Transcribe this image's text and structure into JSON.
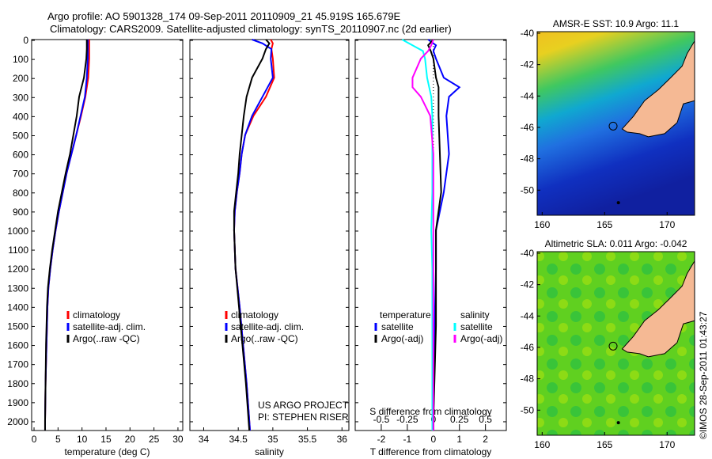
{
  "title_line1": "Argo profile: AO 5901328_174 09-Sep-2011 20110909_21 45.919S 165.679E",
  "title_line2": "Climatology: CARS2009. Satellite-adjusted climatology: synTS_20110907.nc (2d earlier)",
  "watermark": "©IMOS 28-Sep-2011 01:43:27",
  "project": {
    "line1": "US ARGO PROJECT",
    "line2": "PI: STEPHEN RISER"
  },
  "colors": {
    "climatology": "#ff0000",
    "satellite": "#0000ff",
    "argo": "#000000",
    "sal_satellite": "#00ffff",
    "sal_argo": "#ff00ff"
  },
  "chart_data": [
    {
      "type": "line",
      "title": "",
      "xlabel": "temperature (deg C)",
      "ylabel": "",
      "xlim": [
        -0.5,
        31
      ],
      "ylim": [
        2050,
        0
      ],
      "xticks": [
        "0",
        "5",
        "10",
        "15",
        "20",
        "25",
        "30"
      ],
      "yticks": [
        "0",
        "100",
        "200",
        "300",
        "400",
        "500",
        "600",
        "700",
        "800",
        "900",
        "1000",
        "1100",
        "1200",
        "1300",
        "1400",
        "1500",
        "1600",
        "1700",
        "1800",
        "1900",
        "2000"
      ],
      "legend": [
        "climatology",
        "satellite-adj. clim.",
        "Argo(..raw -QC)"
      ],
      "depth": [
        0,
        50,
        100,
        200,
        300,
        400,
        500,
        600,
        700,
        800,
        900,
        1000,
        1100,
        1200,
        1300,
        1400,
        1600,
        1800,
        2000,
        2050
      ],
      "series": [
        {
          "name": "climatology",
          "color": "#ff0000",
          "values": [
            11.5,
            11.5,
            11.5,
            11.3,
            10.7,
            9.8,
            8.8,
            7.8,
            6.8,
            6.0,
            5.2,
            4.5,
            3.9,
            3.4,
            3.0,
            2.8,
            2.6,
            2.4,
            2.3,
            2.3
          ]
        },
        {
          "name": "satellite-adj. clim.",
          "color": "#0000ff",
          "values": [
            11.2,
            11.2,
            11.2,
            11.0,
            10.6,
            9.7,
            8.8,
            7.8,
            6.8,
            6.0,
            5.2,
            4.5,
            3.9,
            3.4,
            3.0,
            2.8,
            2.6,
            2.4,
            2.3,
            2.3
          ]
        },
        {
          "name": "Argo(..raw -QC)",
          "color": "#000000",
          "values": [
            11.0,
            11.0,
            10.9,
            10.4,
            9.4,
            8.9,
            8.2,
            7.5,
            6.6,
            5.8,
            5.0,
            4.4,
            3.8,
            3.3,
            2.9,
            2.7,
            2.5,
            2.4,
            2.3,
            2.3
          ]
        }
      ]
    },
    {
      "type": "line",
      "xlabel": "salinity",
      "xlim": [
        33.8,
        36.1
      ],
      "ylim": [
        2050,
        0
      ],
      "xticks": [
        "34",
        "34.5",
        "35",
        "35.5",
        "36"
      ],
      "legend": [
        "climatology",
        "satellite-adj. clim.",
        "Argo(..raw -QC)"
      ],
      "depth": [
        0,
        20,
        50,
        100,
        200,
        300,
        400,
        500,
        600,
        700,
        800,
        900,
        1000,
        1200,
        1400,
        1600,
        1800,
        2000,
        2050
      ],
      "series": [
        {
          "name": "climatology",
          "color": "#ff0000",
          "values": [
            34.97,
            35.0,
            34.98,
            35.0,
            35.02,
            34.9,
            34.72,
            34.6,
            34.55,
            34.52,
            34.48,
            34.45,
            34.44,
            34.46,
            34.52,
            34.57,
            34.62,
            34.66,
            34.67
          ]
        },
        {
          "name": "satellite-adj. clim.",
          "color": "#0000ff",
          "values": [
            34.7,
            34.85,
            34.98,
            34.97,
            35.0,
            34.85,
            34.7,
            34.6,
            34.55,
            34.52,
            34.48,
            34.45,
            34.44,
            34.46,
            34.52,
            34.57,
            34.62,
            34.66,
            34.67
          ]
        },
        {
          "name": "Argo(..raw -QC)",
          "color": "#000000",
          "values": [
            34.9,
            34.95,
            34.9,
            34.85,
            34.7,
            34.62,
            34.58,
            34.55,
            34.52,
            34.5,
            34.47,
            34.44,
            34.44,
            34.46,
            34.51,
            34.56,
            34.61,
            34.65,
            34.66
          ]
        }
      ]
    },
    {
      "type": "line",
      "xlabel": "T difference from climatology",
      "x2label": "S difference from climatology",
      "xlim": [
        -3,
        2.8
      ],
      "xticks": [
        "-2",
        "-1",
        "0",
        "1",
        "2"
      ],
      "x2ticks": [
        "-0.5",
        "-0.25",
        "0",
        "0.25",
        "0.5"
      ],
      "ylim": [
        2050,
        0
      ],
      "legend_headers": [
        "temperature",
        "salinity"
      ],
      "legend": [
        "satellite",
        "Argo(-adj)",
        "satellite",
        "Argo(-adj)"
      ],
      "depth": [
        0,
        30,
        60,
        100,
        200,
        250,
        300,
        400,
        600,
        800,
        1000,
        1200,
        1500,
        2000,
        2050
      ],
      "series": [
        {
          "name": "temperature satellite",
          "color": "#0000ff",
          "units": "T",
          "values": [
            -0.2,
            0.1,
            0.0,
            0.1,
            0.4,
            1.0,
            0.6,
            0.5,
            0.6,
            0.4,
            0.1,
            0.1,
            0.05,
            0.0,
            0.0
          ]
        },
        {
          "name": "temperature Argo(-adj)",
          "color": "#000000",
          "units": "T",
          "values": [
            0.0,
            -0.2,
            -0.1,
            0.0,
            0.1,
            0.2,
            0.2,
            0.2,
            0.25,
            0.3,
            0.1,
            0.1,
            0.1,
            0.0,
            0.0
          ]
        },
        {
          "name": "salinity satellite",
          "color": "#00ffff",
          "units": "S",
          "values": [
            -0.3,
            -0.2,
            -0.1,
            -0.08,
            -0.06,
            -0.04,
            -0.02,
            -0.01,
            -0.01,
            -0.01,
            -0.02,
            -0.01,
            -0.01,
            -0.01,
            -0.01
          ]
        },
        {
          "name": "salinity Argo(-adj)",
          "color": "#ff00ff",
          "units": "S",
          "values": [
            0.0,
            -0.02,
            -0.05,
            -0.12,
            -0.2,
            -0.2,
            -0.12,
            -0.03,
            0.0,
            0.0,
            0.0,
            0.0,
            0.0,
            0.0,
            0.0
          ]
        }
      ]
    },
    {
      "type": "heatmap",
      "title": "AMSR-E SST: 10.9 Argo: 11.1",
      "xlim": [
        159.6,
        172.2
      ],
      "ylim": [
        -51.6,
        -39.9
      ],
      "xticks": [
        "160",
        "165",
        "170"
      ],
      "yticks": [
        "-40",
        "-42",
        "-44",
        "-46",
        "-48",
        "-50"
      ],
      "profile_location": [
        165.679,
        -45.919
      ]
    },
    {
      "type": "heatmap",
      "title": "Altimetric SLA: 0.011 Argo: -0.042",
      "xlim": [
        159.6,
        172.2
      ],
      "ylim": [
        -51.6,
        -39.9
      ],
      "xticks": [
        "160",
        "165",
        "170"
      ],
      "yticks": [
        "-40",
        "-42",
        "-44",
        "-46",
        "-48",
        "-50"
      ],
      "profile_location": [
        165.679,
        -45.919
      ]
    }
  ]
}
